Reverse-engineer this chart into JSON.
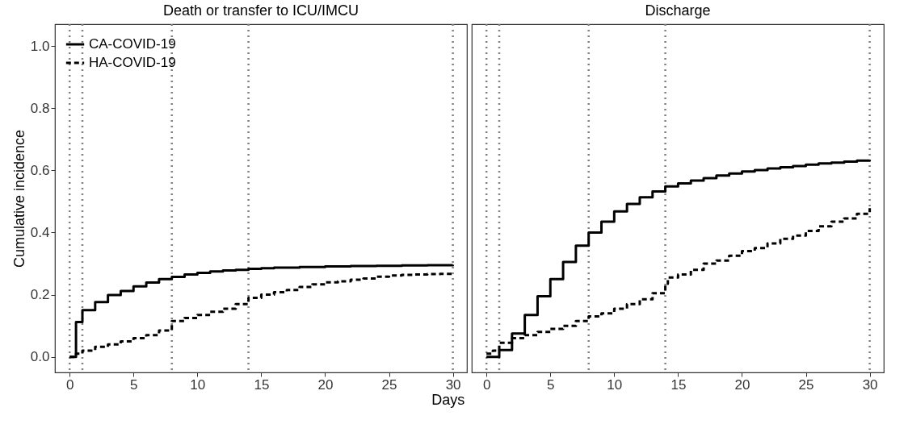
{
  "chart_data": [
    {
      "type": "step",
      "title": "Death or transfer to ICU/IMCU",
      "xlabel": "Days",
      "ylabel": "Cumulative incidence",
      "xlim": [
        -1.15,
        31.1
      ],
      "ylim": [
        -0.05,
        1.07
      ],
      "xticks": [
        0,
        5,
        10,
        15,
        20,
        25,
        30
      ],
      "yticks": [
        {
          "value": 0,
          "label": "0.0"
        },
        {
          "value": 0.2,
          "label": "0.2"
        },
        {
          "value": 0.4,
          "label": "0.4"
        },
        {
          "value": 0.6,
          "label": "0.6"
        },
        {
          "value": 0.8,
          "label": "0.8"
        },
        {
          "value": 1,
          "label": "1.0"
        }
      ],
      "grid": false,
      "legend": "top left",
      "ref_lines": [
        {
          "axis": "x",
          "value": 0,
          "color": "#808080",
          "line_style": "dotted"
        },
        {
          "axis": "x",
          "value": 1,
          "color": "#808080",
          "line_style": "dotted"
        },
        {
          "axis": "x",
          "value": 8,
          "color": "#808080",
          "line_style": "dotted"
        },
        {
          "axis": "x",
          "value": 14,
          "color": "#808080",
          "line_style": "dotted"
        },
        {
          "axis": "x",
          "value": 30,
          "color": "#808080",
          "line_style": "dotted"
        }
      ],
      "series": [
        {
          "name": "CA-COVID-19",
          "color": "#000000",
          "line_style": "solid",
          "x": [
            0,
            0.5,
            1,
            2,
            3,
            4,
            5,
            6,
            7,
            8,
            9,
            10,
            11,
            12,
            13,
            14,
            15,
            16,
            18,
            20,
            22,
            24,
            26,
            28,
            30
          ],
          "values": [
            0,
            0.112,
            0.15,
            0.176,
            0.199,
            0.212,
            0.227,
            0.239,
            0.25,
            0.257,
            0.265,
            0.27,
            0.275,
            0.278,
            0.28,
            0.283,
            0.285,
            0.287,
            0.289,
            0.291,
            0.292,
            0.293,
            0.294,
            0.295,
            0.296
          ]
        },
        {
          "name": "HA-COVID-19",
          "color": "#000000",
          "line_style": "dashed",
          "x": [
            0,
            0.5,
            1,
            2,
            3,
            4,
            5,
            6,
            7,
            8,
            9,
            10,
            11,
            12,
            13,
            14,
            15,
            16,
            17,
            18,
            19,
            20,
            21,
            22,
            23,
            24,
            25,
            26,
            27,
            28,
            29,
            30
          ],
          "values": [
            0,
            0.01,
            0.02,
            0.032,
            0.04,
            0.05,
            0.06,
            0.07,
            0.085,
            0.115,
            0.125,
            0.135,
            0.145,
            0.155,
            0.17,
            0.19,
            0.2,
            0.208,
            0.215,
            0.225,
            0.233,
            0.24,
            0.243,
            0.248,
            0.252,
            0.258,
            0.262,
            0.264,
            0.265,
            0.266,
            0.267,
            0.268
          ]
        }
      ]
    },
    {
      "type": "step",
      "title": "Discharge",
      "xlim": [
        -1.15,
        31.1
      ],
      "ylim": [
        -0.05,
        1.07
      ],
      "xticks": [
        0,
        5,
        10,
        15,
        20,
        25,
        30
      ],
      "tick_labels": "x",
      "grid": false,
      "ref_lines": [
        {
          "axis": "x",
          "value": 0,
          "color": "#808080",
          "line_style": "dotted"
        },
        {
          "axis": "x",
          "value": 1,
          "color": "#808080",
          "line_style": "dotted"
        },
        {
          "axis": "x",
          "value": 8,
          "color": "#808080",
          "line_style": "dotted"
        },
        {
          "axis": "x",
          "value": 14,
          "color": "#808080",
          "line_style": "dotted"
        },
        {
          "axis": "x",
          "value": 30,
          "color": "#808080",
          "line_style": "dotted"
        }
      ],
      "series": [
        {
          "color": "#000000",
          "line_style": "solid",
          "x": [
            0,
            1,
            2,
            3,
            4,
            5,
            6,
            7,
            8,
            9,
            10,
            11,
            12,
            13,
            14,
            15,
            16,
            17,
            18,
            19,
            20,
            21,
            22,
            23,
            24,
            25,
            26,
            27,
            28,
            29,
            30
          ],
          "values": [
            0,
            0.022,
            0.075,
            0.135,
            0.195,
            0.25,
            0.305,
            0.358,
            0.4,
            0.435,
            0.468,
            0.492,
            0.513,
            0.532,
            0.548,
            0.558,
            0.567,
            0.575,
            0.583,
            0.59,
            0.596,
            0.601,
            0.606,
            0.61,
            0.614,
            0.618,
            0.622,
            0.625,
            0.628,
            0.631,
            0.634
          ]
        },
        {
          "color": "#000000",
          "line_style": "dashed",
          "x": [
            0,
            0.5,
            1,
            2,
            3,
            4,
            5,
            6,
            7,
            8,
            9,
            10,
            11,
            12,
            13,
            14,
            14.2,
            15,
            16,
            17,
            18,
            19,
            20,
            21,
            22,
            23,
            24,
            25,
            26,
            27,
            28,
            29,
            30
          ],
          "values": [
            0.01,
            0.02,
            0.045,
            0.06,
            0.07,
            0.08,
            0.09,
            0.1,
            0.115,
            0.13,
            0.14,
            0.155,
            0.17,
            0.185,
            0.205,
            0.235,
            0.255,
            0.265,
            0.28,
            0.3,
            0.31,
            0.325,
            0.34,
            0.35,
            0.365,
            0.38,
            0.39,
            0.405,
            0.42,
            0.435,
            0.445,
            0.46,
            0.478
          ]
        }
      ]
    }
  ]
}
